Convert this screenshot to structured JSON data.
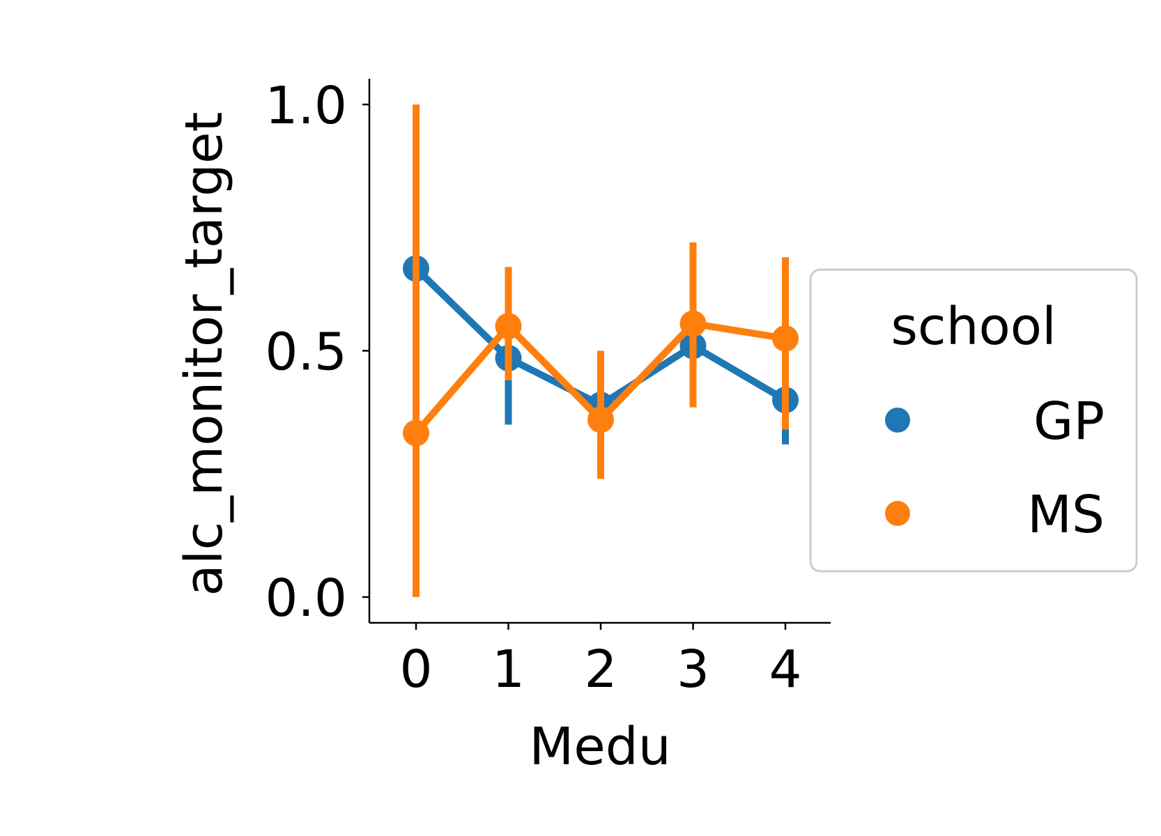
{
  "chart_data": {
    "type": "line",
    "xlabel": "Medu",
    "ylabel": "alc_monitor_target",
    "categories": [
      "0",
      "1",
      "2",
      "3",
      "4"
    ],
    "yticks": [
      "0.0",
      "0.5",
      "1.0"
    ],
    "ylim": [
      -0.05,
      1.05
    ],
    "grid": false,
    "legend": {
      "title": "school",
      "placement": "right"
    },
    "series": [
      {
        "name": "GP",
        "color": "#1f77b4",
        "values": [
          0.667,
          0.485,
          0.39,
          0.51,
          0.4
        ],
        "ci_low": [
          0.667,
          0.35,
          0.31,
          0.43,
          0.31
        ],
        "ci_high": [
          0.667,
          0.61,
          0.46,
          0.6,
          0.48
        ]
      },
      {
        "name": "MS",
        "color": "#ff7f0e",
        "values": [
          0.333,
          0.55,
          0.36,
          0.555,
          0.525
        ],
        "ci_low": [
          0.0,
          0.44,
          0.24,
          0.385,
          0.34
        ],
        "ci_high": [
          1.0,
          0.67,
          0.5,
          0.72,
          0.69
        ]
      }
    ]
  }
}
